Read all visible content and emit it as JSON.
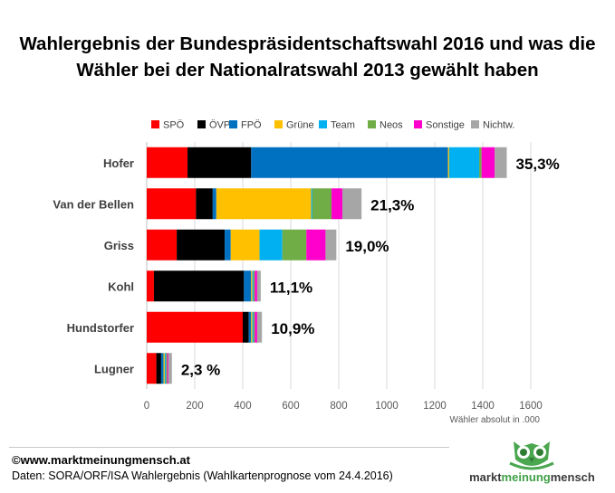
{
  "title_line1": "Wahlergebnis der Bundespräsidentschaftswahl 2016 und was die",
  "title_line2": "Wähler bei der Nationalratswahl 2013 gewählt haben",
  "chart_data": {
    "type": "bar",
    "orientation": "horizontal",
    "stacked": true,
    "categories": [
      "Hofer",
      "Van der Bellen",
      "Griss",
      "Kohl",
      "Hundstorfer",
      "Lugner"
    ],
    "result_labels": [
      "35,3%",
      "21,3%",
      "19,0%",
      "11,1%",
      "10,9%",
      "2,3 %"
    ],
    "series": [
      {
        "name": "SPÖ",
        "color": "#ff0000",
        "values": [
          170,
          205,
          125,
          30,
          400,
          40
        ]
      },
      {
        "name": "ÖVP",
        "color": "#000000",
        "values": [
          265,
          70,
          200,
          375,
          25,
          20
        ]
      },
      {
        "name": "FPÖ",
        "color": "#0070c0",
        "values": [
          820,
          15,
          25,
          30,
          10,
          10
        ]
      },
      {
        "name": "Grüne",
        "color": "#ffc000",
        "values": [
          5,
          395,
          120,
          5,
          5,
          5
        ]
      },
      {
        "name": "Team",
        "color": "#00b0f0",
        "values": [
          125,
          5,
          95,
          5,
          5,
          5
        ]
      },
      {
        "name": "Neos",
        "color": "#70ad47",
        "values": [
          10,
          80,
          100,
          5,
          5,
          5
        ]
      },
      {
        "name": "Sonstige",
        "color": "#ff00cc",
        "values": [
          55,
          45,
          80,
          10,
          10,
          5
        ]
      },
      {
        "name": "Nichtw.",
        "color": "#a6a6a6",
        "values": [
          50,
          80,
          45,
          15,
          20,
          15
        ]
      }
    ],
    "x_ticks": [
      0,
      200,
      400,
      600,
      800,
      1000,
      1200,
      1400,
      1600
    ],
    "xlim": [
      0,
      1600
    ],
    "xlabel": "Wähler absolut in .000",
    "legend_position": "top",
    "grid": "vertical"
  },
  "footer": {
    "source_url": "©www.marktmeinungmensch.at",
    "data_source": "Daten: SORA/ORF/ISA Wahlergebnis (Wahlkartenprognose vom 24.4.2016)"
  },
  "logo": {
    "part1": "markt",
    "part2": "meinung",
    "part3": "mensch",
    "icon": "owl-icon"
  }
}
